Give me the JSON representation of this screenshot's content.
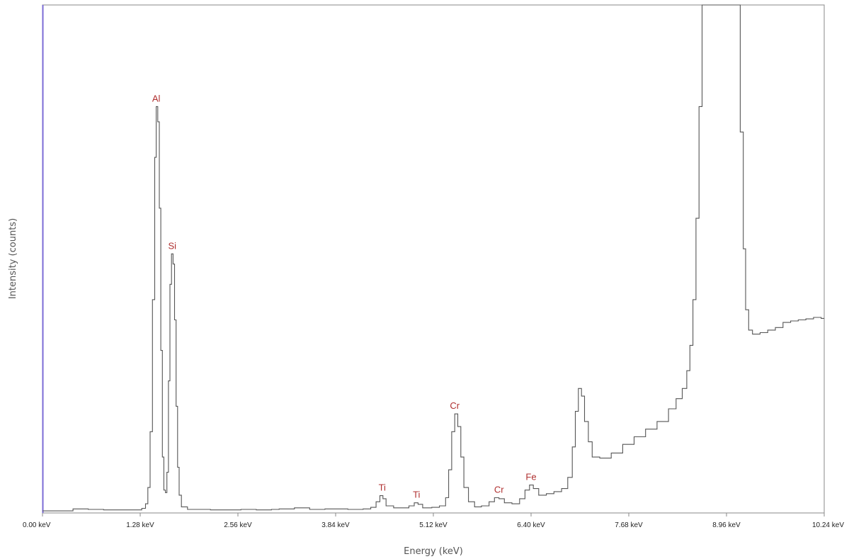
{
  "chart_data": {
    "type": "line",
    "title": "",
    "xlabel": "Energy (keV)",
    "ylabel": "Intensity (counts)",
    "xlim": [
      0,
      10.24
    ],
    "ylim": [
      0,
      1000
    ],
    "grid": false,
    "x_ticks": [
      {
        "value": 0.0,
        "label": "0.00 keV"
      },
      {
        "value": 1.28,
        "label": "1.28 keV"
      },
      {
        "value": 2.56,
        "label": "2.56 keV"
      },
      {
        "value": 3.84,
        "label": "3.84 keV"
      },
      {
        "value": 5.12,
        "label": "5.12 keV"
      },
      {
        "value": 6.4,
        "label": "6.40 keV"
      },
      {
        "value": 7.68,
        "label": "7.68 keV"
      },
      {
        "value": 8.96,
        "label": "8.96 keV"
      },
      {
        "value": 10.24,
        "label": "10.24 keV"
      }
    ],
    "series": [
      {
        "color": "#555555",
        "points": [
          [
            0.0,
            4
          ],
          [
            0.3,
            4
          ],
          [
            0.4,
            8
          ],
          [
            0.6,
            7
          ],
          [
            0.8,
            6
          ],
          [
            1.0,
            6
          ],
          [
            1.2,
            6
          ],
          [
            1.3,
            9
          ],
          [
            1.35,
            18
          ],
          [
            1.38,
            50
          ],
          [
            1.41,
            160
          ],
          [
            1.44,
            420
          ],
          [
            1.47,
            700
          ],
          [
            1.49,
            800
          ],
          [
            1.51,
            770
          ],
          [
            1.53,
            600
          ],
          [
            1.55,
            320
          ],
          [
            1.57,
            110
          ],
          [
            1.59,
            45
          ],
          [
            1.61,
            40
          ],
          [
            1.63,
            80
          ],
          [
            1.65,
            260
          ],
          [
            1.67,
            450
          ],
          [
            1.69,
            510
          ],
          [
            1.71,
            490
          ],
          [
            1.73,
            380
          ],
          [
            1.75,
            210
          ],
          [
            1.77,
            90
          ],
          [
            1.79,
            35
          ],
          [
            1.82,
            12
          ],
          [
            1.9,
            7
          ],
          [
            2.2,
            6
          ],
          [
            2.6,
            7
          ],
          [
            2.8,
            6
          ],
          [
            3.0,
            7
          ],
          [
            3.1,
            8
          ],
          [
            3.3,
            10
          ],
          [
            3.5,
            7
          ],
          [
            3.7,
            8
          ],
          [
            4.0,
            7
          ],
          [
            4.2,
            8
          ],
          [
            4.3,
            11
          ],
          [
            4.37,
            22
          ],
          [
            4.42,
            34
          ],
          [
            4.46,
            28
          ],
          [
            4.5,
            14
          ],
          [
            4.6,
            10
          ],
          [
            4.8,
            14
          ],
          [
            4.87,
            20
          ],
          [
            4.92,
            17
          ],
          [
            4.98,
            10
          ],
          [
            5.1,
            11
          ],
          [
            5.2,
            14
          ],
          [
            5.28,
            30
          ],
          [
            5.32,
            85
          ],
          [
            5.36,
            160
          ],
          [
            5.4,
            195
          ],
          [
            5.44,
            170
          ],
          [
            5.48,
            110
          ],
          [
            5.52,
            50
          ],
          [
            5.58,
            22
          ],
          [
            5.66,
            12
          ],
          [
            5.75,
            14
          ],
          [
            5.85,
            22
          ],
          [
            5.92,
            30
          ],
          [
            5.98,
            28
          ],
          [
            6.05,
            20
          ],
          [
            6.15,
            18
          ],
          [
            6.25,
            28
          ],
          [
            6.32,
            45
          ],
          [
            6.38,
            55
          ],
          [
            6.43,
            48
          ],
          [
            6.5,
            35
          ],
          [
            6.6,
            38
          ],
          [
            6.7,
            42
          ],
          [
            6.8,
            48
          ],
          [
            6.88,
            70
          ],
          [
            6.94,
            130
          ],
          [
            6.98,
            200
          ],
          [
            7.02,
            245
          ],
          [
            7.06,
            230
          ],
          [
            7.1,
            180
          ],
          [
            7.15,
            140
          ],
          [
            7.2,
            110
          ],
          [
            7.3,
            108
          ],
          [
            7.45,
            118
          ],
          [
            7.6,
            135
          ],
          [
            7.75,
            150
          ],
          [
            7.9,
            165
          ],
          [
            8.05,
            180
          ],
          [
            8.2,
            205
          ],
          [
            8.3,
            225
          ],
          [
            8.38,
            245
          ],
          [
            8.44,
            280
          ],
          [
            8.48,
            330
          ],
          [
            8.52,
            420
          ],
          [
            8.56,
            580
          ],
          [
            8.6,
            800
          ],
          [
            8.64,
            1000
          ],
          [
            9.1,
            1000
          ],
          [
            9.14,
            750
          ],
          [
            9.18,
            520
          ],
          [
            9.21,
            400
          ],
          [
            9.25,
            360
          ],
          [
            9.3,
            352
          ],
          [
            9.4,
            355
          ],
          [
            9.5,
            360
          ],
          [
            9.6,
            365
          ],
          [
            9.7,
            375
          ],
          [
            9.8,
            378
          ],
          [
            9.9,
            380
          ],
          [
            10.0,
            382
          ],
          [
            10.1,
            385
          ],
          [
            10.2,
            383
          ],
          [
            10.24,
            383
          ]
        ]
      }
    ],
    "annotations": [
      {
        "text": "Al",
        "x": 1.49,
        "y": 800,
        "color": "#b03030"
      },
      {
        "text": "Si",
        "x": 1.7,
        "y": 510,
        "color": "#b03030"
      },
      {
        "text": "Ti",
        "x": 4.45,
        "y": 34,
        "color": "#b03030"
      },
      {
        "text": "Ti",
        "x": 4.9,
        "y": 20,
        "color": "#b03030"
      },
      {
        "text": "Cr",
        "x": 5.4,
        "y": 195,
        "color": "#b03030"
      },
      {
        "text": "Cr",
        "x": 5.98,
        "y": 30,
        "color": "#b03030"
      },
      {
        "text": "Fe",
        "x": 6.4,
        "y": 55,
        "color": "#b03030"
      }
    ],
    "colors": {
      "frame": "#888888",
      "left_axis": "#7b6bd6",
      "tick_text": "#222222",
      "axis_title": "#555555"
    }
  }
}
